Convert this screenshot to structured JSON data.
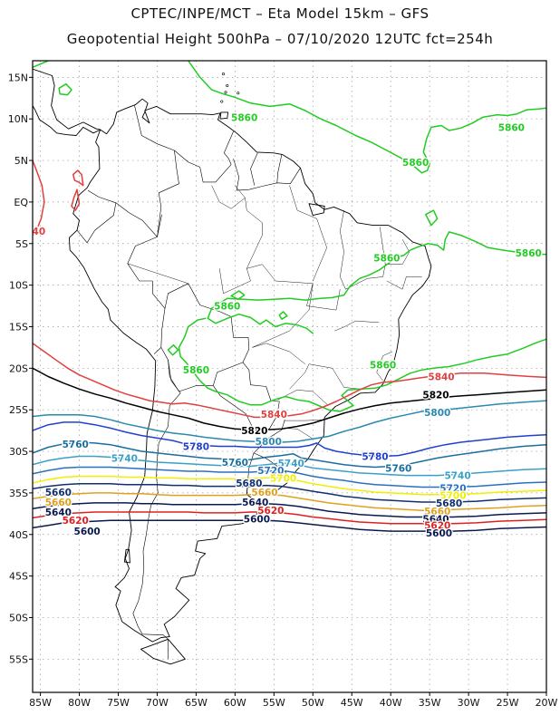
{
  "header": {
    "title_line1": "CPTEC/INPE/MCT –  Eta Model 15km – GFS",
    "title_line2": "Geopotential Height 500hPa – 07/10/2020 12UTC fct=254h"
  },
  "map": {
    "lon_range": [
      -86,
      -20
    ],
    "lat_range": [
      -59,
      17
    ],
    "lat_ticks": [
      {
        "v": 15,
        "label": "15N"
      },
      {
        "v": 10,
        "label": "10N"
      },
      {
        "v": 5,
        "label": "5N"
      },
      {
        "v": 0,
        "label": "EQ"
      },
      {
        "v": -5,
        "label": "5S"
      },
      {
        "v": -10,
        "label": "10S"
      },
      {
        "v": -15,
        "label": "15S"
      },
      {
        "v": -20,
        "label": "20S"
      },
      {
        "v": -25,
        "label": "25S"
      },
      {
        "v": -30,
        "label": "30S"
      },
      {
        "v": -35,
        "label": "35S"
      },
      {
        "v": -40,
        "label": "40S"
      },
      {
        "v": -45,
        "label": "45S"
      },
      {
        "v": -50,
        "label": "50S"
      },
      {
        "v": -55,
        "label": "55S"
      }
    ],
    "lon_ticks": [
      {
        "v": -85,
        "label": "85W"
      },
      {
        "v": -80,
        "label": "80W"
      },
      {
        "v": -75,
        "label": "75W"
      },
      {
        "v": -70,
        "label": "70W"
      },
      {
        "v": -65,
        "label": "65W"
      },
      {
        "v": -60,
        "label": "60W"
      },
      {
        "v": -55,
        "label": "55W"
      },
      {
        "v": -50,
        "label": "50W"
      },
      {
        "v": -45,
        "label": "45W"
      },
      {
        "v": -40,
        "label": "40W"
      },
      {
        "v": -35,
        "label": "35W"
      },
      {
        "v": -30,
        "label": "30W"
      },
      {
        "v": -25,
        "label": "25W"
      },
      {
        "v": -20,
        "label": "20W"
      }
    ],
    "grid": true,
    "land_outline_color": "#000000"
  },
  "contours": [
    {
      "value": "5860",
      "color": "#22cc22"
    },
    {
      "value": "5840",
      "color": "#e04040"
    },
    {
      "value": "5820",
      "color": "#000000"
    },
    {
      "value": "5800",
      "color": "#2a8ab0"
    },
    {
      "value": "5780",
      "color": "#2040d0"
    },
    {
      "value": "5760",
      "color": "#1a6ea0"
    },
    {
      "value": "5740",
      "color": "#3aa0c8"
    },
    {
      "value": "5720",
      "color": "#2a70c0"
    },
    {
      "value": "5700",
      "color": "#f0f000"
    },
    {
      "value": "5680",
      "color": "#103070"
    },
    {
      "value": "5660",
      "color": "#e0a020"
    },
    {
      "value": "5640",
      "color": "#0a1a50"
    },
    {
      "value": "5620",
      "color": "#e02020"
    },
    {
      "value": "5600",
      "color": "#0a1a50"
    }
  ],
  "contour_labels": [
    {
      "text": "5860",
      "color": "#22cc22",
      "lon": -58.8,
      "lat": 10.2
    },
    {
      "text": "5860",
      "color": "#22cc22",
      "lon": -36.8,
      "lat": 4.8
    },
    {
      "text": "5860",
      "color": "#22cc22",
      "lon": -24.5,
      "lat": 9.0
    },
    {
      "text": "5860",
      "color": "#22cc22",
      "lon": -40.5,
      "lat": -6.7
    },
    {
      "text": "5860",
      "color": "#22cc22",
      "lon": -22.3,
      "lat": -6.1
    },
    {
      "text": "5860",
      "color": "#22cc22",
      "lon": -61.0,
      "lat": -12.5
    },
    {
      "text": "5860",
      "color": "#22cc22",
      "lon": -65.0,
      "lat": -20.2
    },
    {
      "text": "5860",
      "color": "#22cc22",
      "lon": -41.0,
      "lat": -19.6
    },
    {
      "text": "40",
      "color": "#e04040",
      "lon": -85.2,
      "lat": -3.5
    },
    {
      "text": "5840",
      "color": "#e04040",
      "lon": -33.5,
      "lat": -21.0
    },
    {
      "text": "5840",
      "color": "#e04040",
      "lon": -55.0,
      "lat": -25.5
    },
    {
      "text": "5820",
      "color": "#000000",
      "lon": -34.2,
      "lat": -23.2
    },
    {
      "text": "5820",
      "color": "#000000",
      "lon": -57.5,
      "lat": -27.5
    },
    {
      "text": "5800",
      "color": "#2a8ab0",
      "lon": -34.0,
      "lat": -25.3
    },
    {
      "text": "5800",
      "color": "#2a8ab0",
      "lon": -55.7,
      "lat": -28.8
    },
    {
      "text": "5780",
      "color": "#2040d0",
      "lon": -65.0,
      "lat": -29.4
    },
    {
      "text": "5780",
      "color": "#2040d0",
      "lon": -42.0,
      "lat": -30.6
    },
    {
      "text": "5760",
      "color": "#1a6ea0",
      "lon": -80.5,
      "lat": -29.1
    },
    {
      "text": "5760",
      "color": "#1a6ea0",
      "lon": -60.0,
      "lat": -31.3
    },
    {
      "text": "5760",
      "color": "#1a6ea0",
      "lon": -39.0,
      "lat": -32.0
    },
    {
      "text": "5740",
      "color": "#3aa0c8",
      "lon": -74.2,
      "lat": -30.8
    },
    {
      "text": "5740",
      "color": "#3aa0c8",
      "lon": -52.8,
      "lat": -31.4
    },
    {
      "text": "5740",
      "color": "#3aa0c8",
      "lon": -31.4,
      "lat": -32.9
    },
    {
      "text": "5720",
      "color": "#2a70c0",
      "lon": -55.4,
      "lat": -32.3
    },
    {
      "text": "5720",
      "color": "#2a70c0",
      "lon": -32.0,
      "lat": -34.4
    },
    {
      "text": "5700",
      "color": "#f0f000",
      "lon": -53.8,
      "lat": -33.2
    },
    {
      "text": "5700",
      "color": "#f0f000",
      "lon": -32.0,
      "lat": -35.3
    },
    {
      "text": "5680",
      "color": "#103070",
      "lon": -58.2,
      "lat": -33.8
    },
    {
      "text": "5680",
      "color": "#103070",
      "lon": -32.5,
      "lat": -36.2
    },
    {
      "text": "5660",
      "color": "#e0a020",
      "lon": -56.2,
      "lat": -34.9
    },
    {
      "text": "5660",
      "color": "#103070",
      "lon": -82.7,
      "lat": -34.9
    },
    {
      "text": "5660",
      "color": "#e0a020",
      "lon": -82.7,
      "lat": -36.1
    },
    {
      "text": "5660",
      "color": "#e0a020",
      "lon": -34.0,
      "lat": -37.2
    },
    {
      "text": "5640",
      "color": "#0a1a50",
      "lon": -57.4,
      "lat": -36.1
    },
    {
      "text": "5640",
      "color": "#0a1a50",
      "lon": -82.7,
      "lat": -37.3
    },
    {
      "text": "5640",
      "color": "#0a1a50",
      "lon": -34.2,
      "lat": -38.1
    },
    {
      "text": "5620",
      "color": "#e02020",
      "lon": -55.4,
      "lat": -37.1
    },
    {
      "text": "5620",
      "color": "#e02020",
      "lon": -80.5,
      "lat": -38.3
    },
    {
      "text": "5620",
      "color": "#e02020",
      "lon": -34.0,
      "lat": -38.9
    },
    {
      "text": "5600",
      "color": "#0a1a50",
      "lon": -57.2,
      "lat": -38.1
    },
    {
      "text": "5600",
      "color": "#0a1a50",
      "lon": -79.0,
      "lat": -39.6
    },
    {
      "text": "5600",
      "color": "#0a1a50",
      "lon": -33.8,
      "lat": -39.8
    }
  ]
}
